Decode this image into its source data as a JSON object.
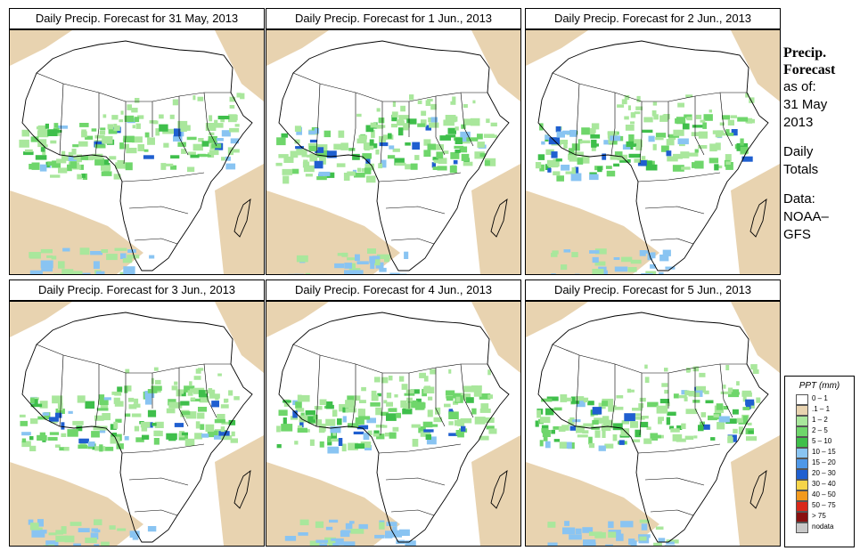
{
  "panels": [
    {
      "title": "Daily Precip. Forecast for  31 May, 2013"
    },
    {
      "title": "Daily Precip. Forecast for  1 Jun., 2013"
    },
    {
      "title": "Daily Precip. Forecast for  2 Jun., 2013"
    },
    {
      "title": "Daily Precip. Forecast for  3 Jun., 2013"
    },
    {
      "title": "Daily Precip. Forecast for  4 Jun., 2013"
    },
    {
      "title": "Daily Precip. Forecast for  5 Jun., 2013"
    }
  ],
  "sidebar": {
    "heading_line1": "Precip.",
    "heading_line2": "Forecast",
    "asof_label": "as of:",
    "asof_day": "31 May",
    "asof_year": "2013",
    "totals_line1": "Daily",
    "totals_line2": "Totals",
    "data_line1": "Data:",
    "data_line2": "NOAA–",
    "data_line3": "GFS"
  },
  "legend": {
    "title": "PPT (mm)",
    "items": [
      {
        "label": "0 – 1",
        "color": "#ffffff"
      },
      {
        "label": ".1 – 1",
        "color": "#e8d3b0"
      },
      {
        "label": "1 – 2",
        "color": "#a9e79c"
      },
      {
        "label": "2 – 5",
        "color": "#6fd66b"
      },
      {
        "label": "5 – 10",
        "color": "#3fbf4b"
      },
      {
        "label": "10 – 15",
        "color": "#89c4f2"
      },
      {
        "label": "15 – 20",
        "color": "#4f98e8"
      },
      {
        "label": "20 – 30",
        "color": "#1f5fd0"
      },
      {
        "label": "30 – 40",
        "color": "#f7d54a"
      },
      {
        "label": "40 – 50",
        "color": "#f39a1e"
      },
      {
        "label": "50 – 75",
        "color": "#d9281a"
      },
      {
        "label": "> 75",
        "color": "#8a1010"
      },
      {
        "label": "nodata",
        "color": "#c8c8c8"
      }
    ]
  }
}
